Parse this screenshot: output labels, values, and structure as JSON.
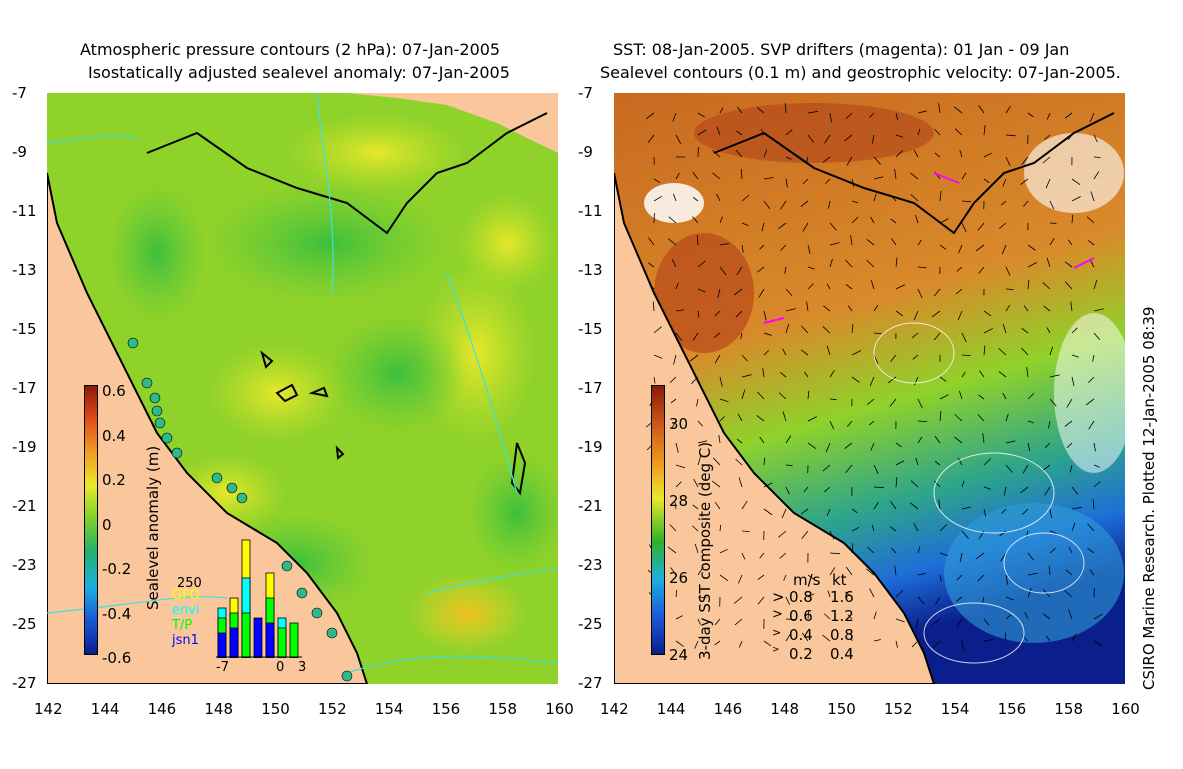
{
  "left_panel": {
    "title_line1": "Atmospheric pressure contours (2 hPa): 07-Jan-2005",
    "title_line2": "Isostatically adjusted sealevel anomaly: 07-Jan-2005",
    "colorbar_label": "Sealevel anomaly (m)",
    "colorbar_ticks": [
      "0.6",
      "0.4",
      "0.2",
      "0",
      "-0.2",
      "-0.4",
      "-0.6"
    ],
    "inset": {
      "scale_label": "250",
      "legend": [
        {
          "label": "GFO",
          "color": "#ffff00"
        },
        {
          "label": "envi",
          "color": "#00ffff"
        },
        {
          "label": "T/P",
          "color": "#00ff00"
        },
        {
          "label": "jsn1",
          "color": "#0000ff"
        }
      ],
      "xticks": [
        "-7",
        "0",
        "3"
      ]
    }
  },
  "right_panel": {
    "title_line1": "SST: 08-Jan-2005. SVP drifters (magenta): 01 Jan - 09 Jan",
    "title_line2": "Sealevel contours (0.1 m) and geostrophic velocity: 07-Jan-2005.",
    "colorbar_label": "3-day SST composite (deg C)",
    "colorbar_ticks": [
      "30",
      "28",
      "26",
      "24"
    ],
    "velocity_legend": {
      "headers": [
        "m/s",
        "kt"
      ],
      "rows": [
        [
          "0.8",
          "1.6"
        ],
        [
          "0.6",
          "1.2"
        ],
        [
          "0.4",
          "0.8"
        ],
        [
          "0.2",
          "0.4"
        ]
      ]
    }
  },
  "axes": {
    "x_ticks": [
      "142",
      "144",
      "146",
      "148",
      "150",
      "152",
      "154",
      "156",
      "158",
      "160"
    ],
    "y_ticks": [
      "-7",
      "-9",
      "-11",
      "-13",
      "-15",
      "-17",
      "-19",
      "-21",
      "-23",
      "-25",
      "-27"
    ]
  },
  "credit": "CSIRO Marine Research. Plotted 12-Jan-2005 08:39",
  "colors": {
    "land": "#f9c79b",
    "ocean_left_base": "#8fd22a",
    "ocean_right_base": "#d98a2a",
    "coast": "#000000"
  }
}
